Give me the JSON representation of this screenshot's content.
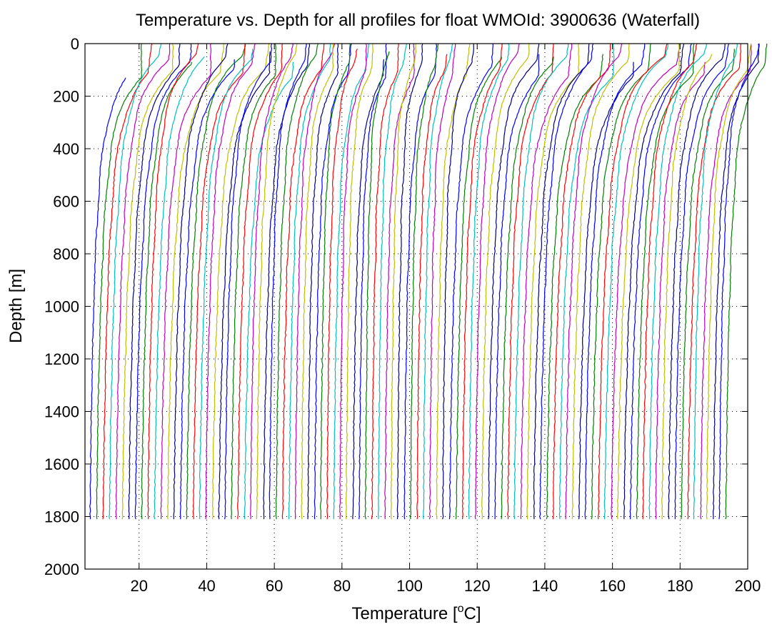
{
  "chart_data": {
    "type": "line",
    "title": "Temperature vs. Depth for all profiles for float WMOId: 3900636 (Waterfall)",
    "xlabel": {
      "prefix": "Temperature [",
      "superscript": "o",
      "suffix": "C]"
    },
    "ylabel": "Depth [m]",
    "xlim": [
      4,
      200
    ],
    "ylim": [
      2000,
      0
    ],
    "y_reversed": true,
    "grid": "dotted",
    "x_ticks": [
      20,
      40,
      60,
      80,
      100,
      120,
      140,
      160,
      180,
      200
    ],
    "y_ticks": [
      0,
      200,
      400,
      600,
      800,
      1000,
      1200,
      1400,
      1600,
      1800,
      2000
    ],
    "series_colors": [
      "#0000ff",
      "#008000",
      "#ff0000",
      "#00bfbf",
      "#bf00bf",
      "#bfbf00",
      "#000080"
    ],
    "profile_count": 100,
    "profile_depth_max": 1810,
    "profile_start_x": 5,
    "profile_step_x": 1.9,
    "profile_bottom_temp": 3.0
  }
}
